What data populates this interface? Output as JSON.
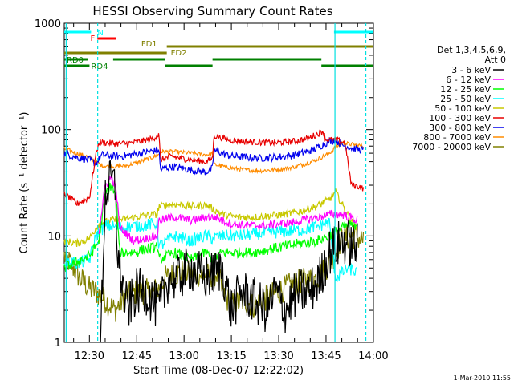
{
  "chart_data": {
    "type": "line",
    "title": "HESSI Observing Summary Count Rates",
    "xlabel": "Start Time (08-Dec-07 12:22:02)",
    "ylabel": "Count Rate (s⁻¹ detector⁻¹)",
    "y_scale": "log",
    "ylim": [
      1,
      1000
    ],
    "xlim_minutes": [
      0,
      98
    ],
    "x_ticks": [
      {
        "label": "12:30",
        "minute": 7.97
      },
      {
        "label": "12:45",
        "minute": 22.97
      },
      {
        "label": "13:00",
        "minute": 37.97
      },
      {
        "label": "13:15",
        "minute": 52.97
      },
      {
        "label": "13:30",
        "minute": 67.97
      },
      {
        "label": "13:45",
        "minute": 82.97
      },
      {
        "label": "14:00",
        "minute": 97.97
      }
    ],
    "y_ticks": [
      {
        "label": "1",
        "value": 1
      },
      {
        "label": "10",
        "value": 10
      },
      {
        "label": "100",
        "value": 100
      },
      {
        "label": "1000",
        "value": 1000
      }
    ],
    "legend": {
      "placement": "right",
      "header": [
        "Det 1,3,4,5,6,9,",
        "Att 0"
      ],
      "entries": [
        {
          "label": "3 - 6 keV",
          "color": "#000000"
        },
        {
          "label": "6 - 12 keV",
          "color": "#ff00ff"
        },
        {
          "label": "12 - 25 keV",
          "color": "#00ff00"
        },
        {
          "label": "25 - 50 keV",
          "color": "#00ffff"
        },
        {
          "label": "50 - 100 keV",
          "color": "#c8c800"
        },
        {
          "label": "100 - 300 keV",
          "color": "#e80000"
        },
        {
          "label": "300 - 800 keV",
          "color": "#0000ee"
        },
        {
          "label": "800 - 7000 keV",
          "color": "#ff8c00"
        },
        {
          "label": "7000 - 20000 keV",
          "color": "#808000"
        }
      ]
    },
    "flag_bars": [
      {
        "label": "N",
        "color": "#00ffff",
        "segments": [
          [
            0,
            8.5
          ],
          [
            85.5,
            98
          ]
        ]
      },
      {
        "label": "F",
        "color": "#ff0000",
        "segments": [
          [
            10.5,
            16.5
          ]
        ]
      },
      {
        "label": "FD1",
        "color": "#808000",
        "segments": [
          [
            32.5,
            98
          ]
        ]
      },
      {
        "label": "FD2",
        "color": "#808000",
        "segments": [
          [
            0,
            32.5
          ]
        ]
      },
      {
        "label": "RD0",
        "color": "#008000",
        "segments": [
          [
            0,
            7.5
          ],
          [
            15.5,
            32
          ],
          [
            47,
            81.5
          ]
        ]
      },
      {
        "label": "RD4",
        "color": "#008000",
        "segments": [
          [
            0,
            8
          ],
          [
            32,
            47
          ],
          [
            81.5,
            98
          ]
        ]
      }
    ],
    "saa_boundaries_minutes": [
      0.6,
      10.6,
      85.8,
      95.6
    ],
    "series": [
      {
        "name": "3 - 6 keV",
        "color": "#000000",
        "noise": 0.45,
        "points": [
          [
            11.5,
            1
          ],
          [
            13,
            25
          ],
          [
            15,
            34
          ],
          [
            16.2,
            28
          ],
          [
            17,
            6
          ],
          [
            20,
            2
          ],
          [
            23,
            3
          ],
          [
            26,
            3
          ],
          [
            30,
            2
          ],
          [
            33,
            4
          ],
          [
            36,
            4
          ],
          [
            40,
            5
          ],
          [
            45,
            4
          ],
          [
            50,
            5
          ],
          [
            53,
            2
          ],
          [
            56,
            3
          ],
          [
            60,
            2.5
          ],
          [
            64,
            2
          ],
          [
            67,
            3
          ],
          [
            70,
            2
          ],
          [
            74,
            3
          ],
          [
            78,
            3
          ],
          [
            81,
            4
          ],
          [
            84,
            7
          ],
          [
            88,
            9
          ],
          [
            93,
            8
          ]
        ]
      },
      {
        "name": "6 - 12 keV",
        "color": "#ff00ff",
        "noise": 0.08,
        "points": [
          [
            11,
            11
          ],
          [
            13,
            30
          ],
          [
            15,
            36
          ],
          [
            16.5,
            27
          ],
          [
            17.5,
            12
          ],
          [
            22,
            9
          ],
          [
            26,
            9.5
          ],
          [
            29.5,
            10
          ],
          [
            30,
            14
          ],
          [
            35,
            15
          ],
          [
            40,
            14
          ],
          [
            45,
            15
          ],
          [
            48,
            15
          ],
          [
            50,
            14
          ],
          [
            53,
            13
          ],
          [
            58,
            12.5
          ],
          [
            63,
            12.5
          ],
          [
            68,
            13
          ],
          [
            73,
            13.5
          ],
          [
            78,
            14.5
          ],
          [
            81,
            15
          ],
          [
            84,
            16
          ],
          [
            88,
            16
          ],
          [
            93,
            14
          ]
        ]
      },
      {
        "name": "12 - 25 keV",
        "color": "#00ff00",
        "noise": 0.1,
        "points": [
          [
            0,
            5
          ],
          [
            8,
            6.5
          ],
          [
            11,
            9
          ],
          [
            13,
            25
          ],
          [
            15,
            30
          ],
          [
            16.5,
            22
          ],
          [
            17.5,
            7
          ],
          [
            22,
            7
          ],
          [
            26,
            7.5
          ],
          [
            29.5,
            8
          ],
          [
            30,
            6
          ],
          [
            35,
            7
          ],
          [
            40,
            6
          ],
          [
            45,
            7
          ],
          [
            47,
            6
          ],
          [
            50,
            7
          ],
          [
            55,
            7
          ],
          [
            60,
            7
          ],
          [
            65,
            7.5
          ],
          [
            70,
            8
          ],
          [
            75,
            8.5
          ],
          [
            80,
            9
          ],
          [
            84,
            10
          ],
          [
            88,
            12
          ],
          [
            93,
            13
          ]
        ]
      },
      {
        "name": "25 - 50 keV",
        "color": "#00ffff",
        "noise": 0.12,
        "points": [
          [
            0,
            6
          ],
          [
            4,
            5.5
          ],
          [
            8,
            6
          ],
          [
            10,
            10
          ],
          [
            13,
            12.5
          ],
          [
            18,
            12
          ],
          [
            24,
            12.5
          ],
          [
            29.5,
            13
          ],
          [
            30,
            8
          ],
          [
            35,
            10
          ],
          [
            40,
            9
          ],
          [
            45,
            10
          ],
          [
            47,
            9.5
          ],
          [
            50,
            10
          ],
          [
            55,
            10
          ],
          [
            62,
            10.5
          ],
          [
            70,
            11
          ],
          [
            76,
            11.5
          ],
          [
            81,
            12.5
          ],
          [
            84,
            13.5
          ],
          [
            86,
            4
          ],
          [
            90,
            5
          ],
          [
            93,
            4.5
          ]
        ]
      },
      {
        "name": "50 - 100 keV",
        "color": "#c8c800",
        "noise": 0.07,
        "points": [
          [
            0,
            9
          ],
          [
            4,
            8.5
          ],
          [
            8,
            9.5
          ],
          [
            11,
            13
          ],
          [
            15,
            14
          ],
          [
            20,
            14.5
          ],
          [
            25,
            15.5
          ],
          [
            29.5,
            16
          ],
          [
            30,
            19
          ],
          [
            35,
            20
          ],
          [
            40,
            19
          ],
          [
            45,
            19.5
          ],
          [
            47,
            18
          ],
          [
            50,
            16
          ],
          [
            55,
            15
          ],
          [
            60,
            15
          ],
          [
            65,
            15.5
          ],
          [
            70,
            16
          ],
          [
            75,
            17
          ],
          [
            80,
            19
          ],
          [
            84,
            22
          ],
          [
            86,
            26
          ],
          [
            88,
            20
          ],
          [
            93,
            11
          ]
        ]
      },
      {
        "name": "100 - 300 keV",
        "color": "#e80000",
        "noise": 0.06,
        "points": [
          [
            0,
            25
          ],
          [
            4,
            20
          ],
          [
            8,
            23
          ],
          [
            10,
            58
          ],
          [
            11,
            76
          ],
          [
            16,
            74
          ],
          [
            20,
            74
          ],
          [
            24,
            77
          ],
          [
            28,
            82
          ],
          [
            30,
            90
          ],
          [
            30.5,
            52
          ],
          [
            34,
            56
          ],
          [
            40,
            52
          ],
          [
            45,
            50
          ],
          [
            47,
            54
          ],
          [
            47.5,
            88
          ],
          [
            52,
            80
          ],
          [
            57,
            77
          ],
          [
            62,
            76
          ],
          [
            67,
            75
          ],
          [
            72,
            77
          ],
          [
            77,
            82
          ],
          [
            80,
            90
          ],
          [
            82,
            97
          ],
          [
            83,
            80
          ],
          [
            86,
            80
          ],
          [
            89,
            75
          ],
          [
            91,
            30
          ],
          [
            94,
            29
          ],
          [
            95,
            27
          ]
        ]
      },
      {
        "name": "300 - 800 keV",
        "color": "#0000ee",
        "noise": 0.07,
        "points": [
          [
            0,
            60
          ],
          [
            4,
            55
          ],
          [
            8,
            52
          ],
          [
            10,
            48
          ],
          [
            12,
            58
          ],
          [
            16,
            56
          ],
          [
            20,
            57
          ],
          [
            24,
            60
          ],
          [
            28,
            63
          ],
          [
            30,
            65
          ],
          [
            30.5,
            42
          ],
          [
            34,
            45
          ],
          [
            40,
            42
          ],
          [
            45,
            40
          ],
          [
            47,
            43
          ],
          [
            47.5,
            64
          ],
          [
            52,
            57
          ],
          [
            57,
            55
          ],
          [
            62,
            54
          ],
          [
            67,
            55
          ],
          [
            72,
            57
          ],
          [
            77,
            62
          ],
          [
            80,
            67
          ],
          [
            84,
            78
          ],
          [
            86,
            80
          ],
          [
            88,
            72
          ],
          [
            92,
            66
          ],
          [
            95,
            64
          ]
        ]
      },
      {
        "name": "800 - 7000 keV",
        "color": "#ff8c00",
        "noise": 0.04,
        "points": [
          [
            0,
            66
          ],
          [
            4,
            60
          ],
          [
            8,
            55
          ],
          [
            12,
            46
          ],
          [
            16,
            45
          ],
          [
            20,
            46
          ],
          [
            24,
            50
          ],
          [
            28,
            55
          ],
          [
            30,
            58
          ],
          [
            30.5,
            62
          ],
          [
            35,
            62
          ],
          [
            40,
            60
          ],
          [
            45,
            58
          ],
          [
            47,
            60
          ],
          [
            47.5,
            47
          ],
          [
            52,
            44
          ],
          [
            57,
            42
          ],
          [
            62,
            41
          ],
          [
            67,
            42
          ],
          [
            72,
            44
          ],
          [
            77,
            48
          ],
          [
            81,
            54
          ],
          [
            84,
            60
          ],
          [
            86,
            68
          ],
          [
            88,
            75
          ],
          [
            92,
            72
          ],
          [
            95,
            70
          ]
        ]
      },
      {
        "name": "7000 - 20000 keV",
        "color": "#808000",
        "noise": 0.25,
        "points": [
          [
            0,
            6.5
          ],
          [
            3,
            5
          ],
          [
            5,
            4
          ],
          [
            8,
            3.2
          ],
          [
            10,
            3
          ],
          [
            13,
            2.5
          ],
          [
            16,
            2
          ],
          [
            20,
            2.8
          ],
          [
            24,
            3
          ],
          [
            28,
            3
          ],
          [
            30,
            3.2
          ],
          [
            32,
            4
          ],
          [
            36,
            4.5
          ],
          [
            40,
            4.5
          ],
          [
            45,
            4.2
          ],
          [
            49,
            4.5
          ],
          [
            50,
            3
          ],
          [
            53,
            2.2
          ],
          [
            57,
            2.5
          ],
          [
            60,
            2.2
          ],
          [
            64,
            2.6
          ],
          [
            68,
            3
          ],
          [
            72,
            3.5
          ],
          [
            76,
            3.8
          ],
          [
            80,
            4
          ],
          [
            84,
            5.5
          ],
          [
            86,
            7
          ],
          [
            88,
            9.5
          ],
          [
            92,
            10
          ],
          [
            95,
            9
          ]
        ]
      }
    ]
  },
  "footer": {
    "timestamp": "1-Mar-2010 11:55"
  }
}
